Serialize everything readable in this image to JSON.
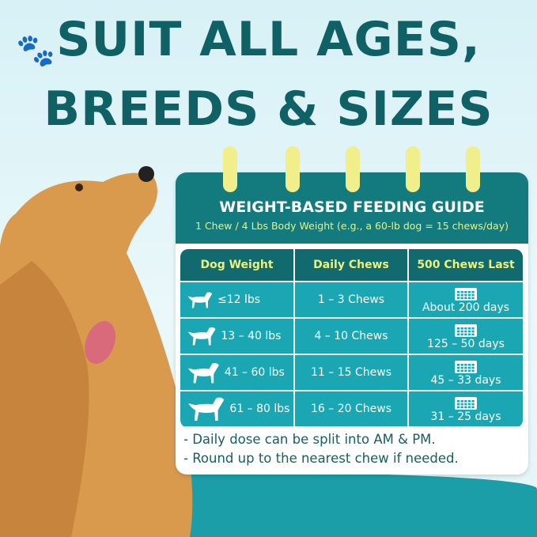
{
  "headline": {
    "line1": "SUIT ALL AGES,",
    "line2": "BREEDS & SIZES"
  },
  "guide": {
    "title": "WEIGHT-BASED FEEDING GUIDE",
    "subtitle": "1 Chew / 4 Lbs Body Weight (e.g., a 60-lb dog = 15 chews/day)"
  },
  "table": {
    "headers": [
      "Dog Weight",
      "Daily Chews",
      "500 Chews Last"
    ],
    "rows": [
      {
        "weight": "≤12 lbs",
        "chews": "1 – 3 Chews",
        "lasts": "About 200 days"
      },
      {
        "weight": "13 – 40 lbs",
        "chews": "4 – 10 Chews",
        "lasts": "125 – 50 days"
      },
      {
        "weight": "41 – 60 lbs",
        "chews": "11 – 15 Chews",
        "lasts": "45 – 33 days"
      },
      {
        "weight": "61 – 80 lbs",
        "chews": "16 – 20 Chews",
        "lasts": "31 – 25 days"
      }
    ]
  },
  "notes": [
    "- Daily dose can be split into AM & PM.",
    "- Round up to the nearest chew if needed."
  ],
  "colors": {
    "headline": "#0f6166",
    "header": "#137a7e",
    "row": "#1ba6b4",
    "accent": "#eef07a"
  }
}
